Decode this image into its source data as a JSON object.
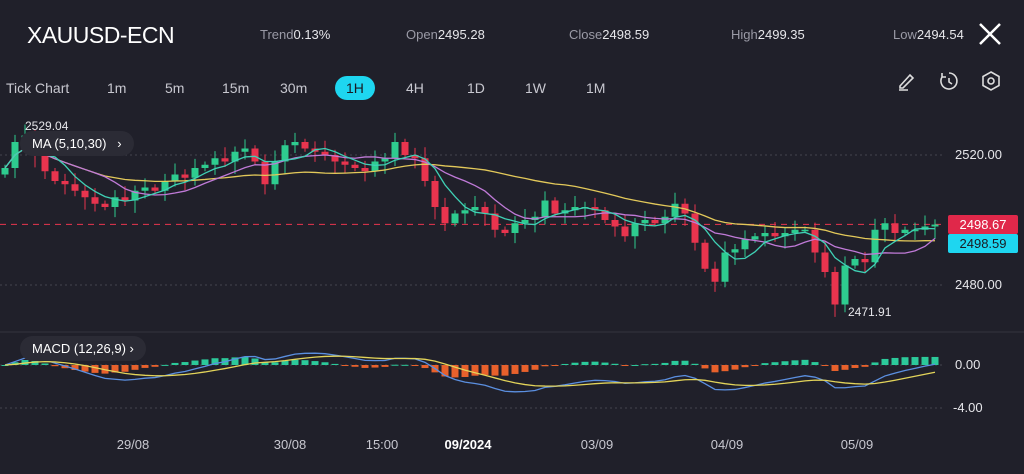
{
  "header": {
    "symbol": "XAUUSD-ECN",
    "stats": [
      {
        "label": "Trend",
        "value": "0.13%"
      },
      {
        "label": "Open",
        "value": "2495.28"
      },
      {
        "label": "Close",
        "value": "2498.59"
      },
      {
        "label": "High",
        "value": "2499.35"
      },
      {
        "label": "Low",
        "value": "2494.54"
      }
    ],
    "close_icon": "close-icon"
  },
  "timeframes": [
    "Tick Chart",
    "1m",
    "5m",
    "15m",
    "30m",
    "1H",
    "4H",
    "1D",
    "1W",
    "1M"
  ],
  "active_timeframe": "1H",
  "tools": [
    "pencil-icon",
    "timer-icon",
    "settings-icon"
  ],
  "indicators": {
    "ma_label": "MA (5,10,30)",
    "macd_label": "MACD (12,26,9)"
  },
  "colors": {
    "up": "#2ecc8f",
    "down": "#e8344e",
    "ma5": "#3fd1b5",
    "ma10": "#c07ad8",
    "ma30": "#e3c95a",
    "macd": "#5b8fe0",
    "signal": "#e3d45a",
    "hist_up": "#2cc99a",
    "hist_down": "#e8612c",
    "accent": "#1ed6f0"
  },
  "price_axis": [
    "2520.00",
    "2480.00"
  ],
  "macd_axis": [
    "0.00",
    "-4.00"
  ],
  "markers": {
    "max": "2529.04",
    "min": "2471.91",
    "last_price": "2498.67",
    "close_price": "2498.59"
  },
  "x_labels": [
    {
      "text": "29/08",
      "bold": false
    },
    {
      "text": "30/08",
      "bold": false
    },
    {
      "text": "15:00",
      "bold": false
    },
    {
      "text": "09/2024",
      "bold": true
    },
    {
      "text": "03/09",
      "bold": false
    },
    {
      "text": "04/09",
      "bold": false
    },
    {
      "text": "05/09",
      "bold": false
    }
  ],
  "chart_data": {
    "type": "candlestick",
    "price_range": [
      2468,
      2532
    ],
    "ma_periods": [
      5,
      10,
      30
    ],
    "macd_params": [
      12,
      26,
      9
    ],
    "closes": [
      2516,
      2524,
      2526,
      2520,
      2515,
      2512,
      2511,
      2509,
      2507,
      2505,
      2504,
      2507,
      2506,
      2509,
      2510,
      2509,
      2512,
      2514,
      2513,
      2516,
      2517,
      2519,
      2518,
      2521,
      2522,
      2518,
      2511,
      2518,
      2523,
      2524,
      2522,
      2521,
      2520,
      2518,
      2517,
      2516,
      2515,
      2518,
      2519,
      2524,
      2520,
      2519,
      2512,
      2504,
      2499,
      2502,
      2503,
      2504,
      2502,
      2497,
      2496,
      2499,
      2500,
      2501,
      2506,
      2502,
      2503,
      2504,
      2504,
      2503,
      2500,
      2498,
      2495,
      2499,
      2500,
      2499,
      2501,
      2505,
      2502,
      2493,
      2485,
      2481,
      2490,
      2491,
      2494,
      2495,
      2496,
      2495,
      2496,
      2497,
      2497,
      2490,
      2484,
      2474,
      2486,
      2488,
      2487,
      2497,
      2499,
      2496,
      2497,
      2497,
      2498,
      2498.59
    ]
  }
}
